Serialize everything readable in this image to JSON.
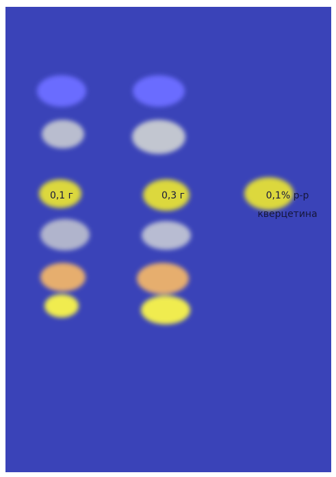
{
  "lanes": [
    {
      "label": "0,1 г"
    },
    {
      "label": "0,3 г"
    },
    {
      "label": "0,1% р-р",
      "sublabel": "кверцетина"
    }
  ]
}
